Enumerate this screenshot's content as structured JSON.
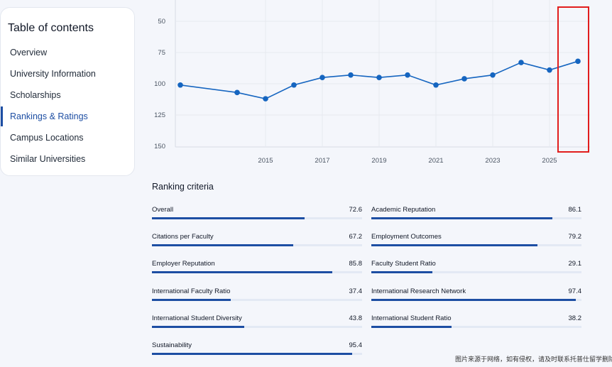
{
  "toc": {
    "title": "Table of contents",
    "items": [
      {
        "label": "Overview",
        "active": false
      },
      {
        "label": "University Information",
        "active": false
      },
      {
        "label": "Scholarships",
        "active": false
      },
      {
        "label": "Rankings & Ratings",
        "active": true
      },
      {
        "label": "Campus Locations",
        "active": false
      },
      {
        "label": "Similar Universities",
        "active": false
      }
    ]
  },
  "chart_data": {
    "type": "line",
    "title": "",
    "xlabel": "",
    "ylabel": "",
    "y_inverted": true,
    "ylim": [
      150,
      45
    ],
    "yticks": [
      50,
      75,
      100,
      125,
      150
    ],
    "xticks": [
      2015,
      2017,
      2019,
      2021,
      2023,
      2025
    ],
    "grid": true,
    "color": "#1565c0",
    "series": [
      {
        "x": [
          2012,
          2014,
          2015,
          2016,
          2017,
          2018,
          2019,
          2020,
          2021,
          2022,
          2023,
          2024,
          2025,
          2026
        ],
        "values": [
          101,
          107,
          112,
          101,
          95,
          93,
          95,
          93,
          101,
          96,
          93,
          83,
          89,
          82
        ]
      }
    ]
  },
  "criteria": {
    "title": "Ranking criteria",
    "items": [
      {
        "label": "Overall",
        "value": "72.6",
        "pct": 72.6
      },
      {
        "label": "Academic Reputation",
        "value": "86.1",
        "pct": 86.1
      },
      {
        "label": "Citations per Faculty",
        "value": "67.2",
        "pct": 67.2
      },
      {
        "label": "Employment Outcomes",
        "value": "79.2",
        "pct": 79.2
      },
      {
        "label": "Employer Reputation",
        "value": "85.8",
        "pct": 85.8
      },
      {
        "label": "Faculty Student Ratio",
        "value": "29.1",
        "pct": 29.1
      },
      {
        "label": "International Faculty Ratio",
        "value": "37.4",
        "pct": 37.4
      },
      {
        "label": "International Research Network",
        "value": "97.4",
        "pct": 97.4
      },
      {
        "label": "International Student Diversity",
        "value": "43.8",
        "pct": 43.8
      },
      {
        "label": "International Student Ratio",
        "value": "38.2",
        "pct": 38.2
      },
      {
        "label": "Sustainability",
        "value": "95.4",
        "pct": 95.4
      }
    ]
  },
  "watermark": "图片来源于网络，如有侵权，请及时联系托普仕留学删除",
  "colors": {
    "accent": "#1d4ea3",
    "line": "#1565c0",
    "highlight": "#e11d1d"
  }
}
